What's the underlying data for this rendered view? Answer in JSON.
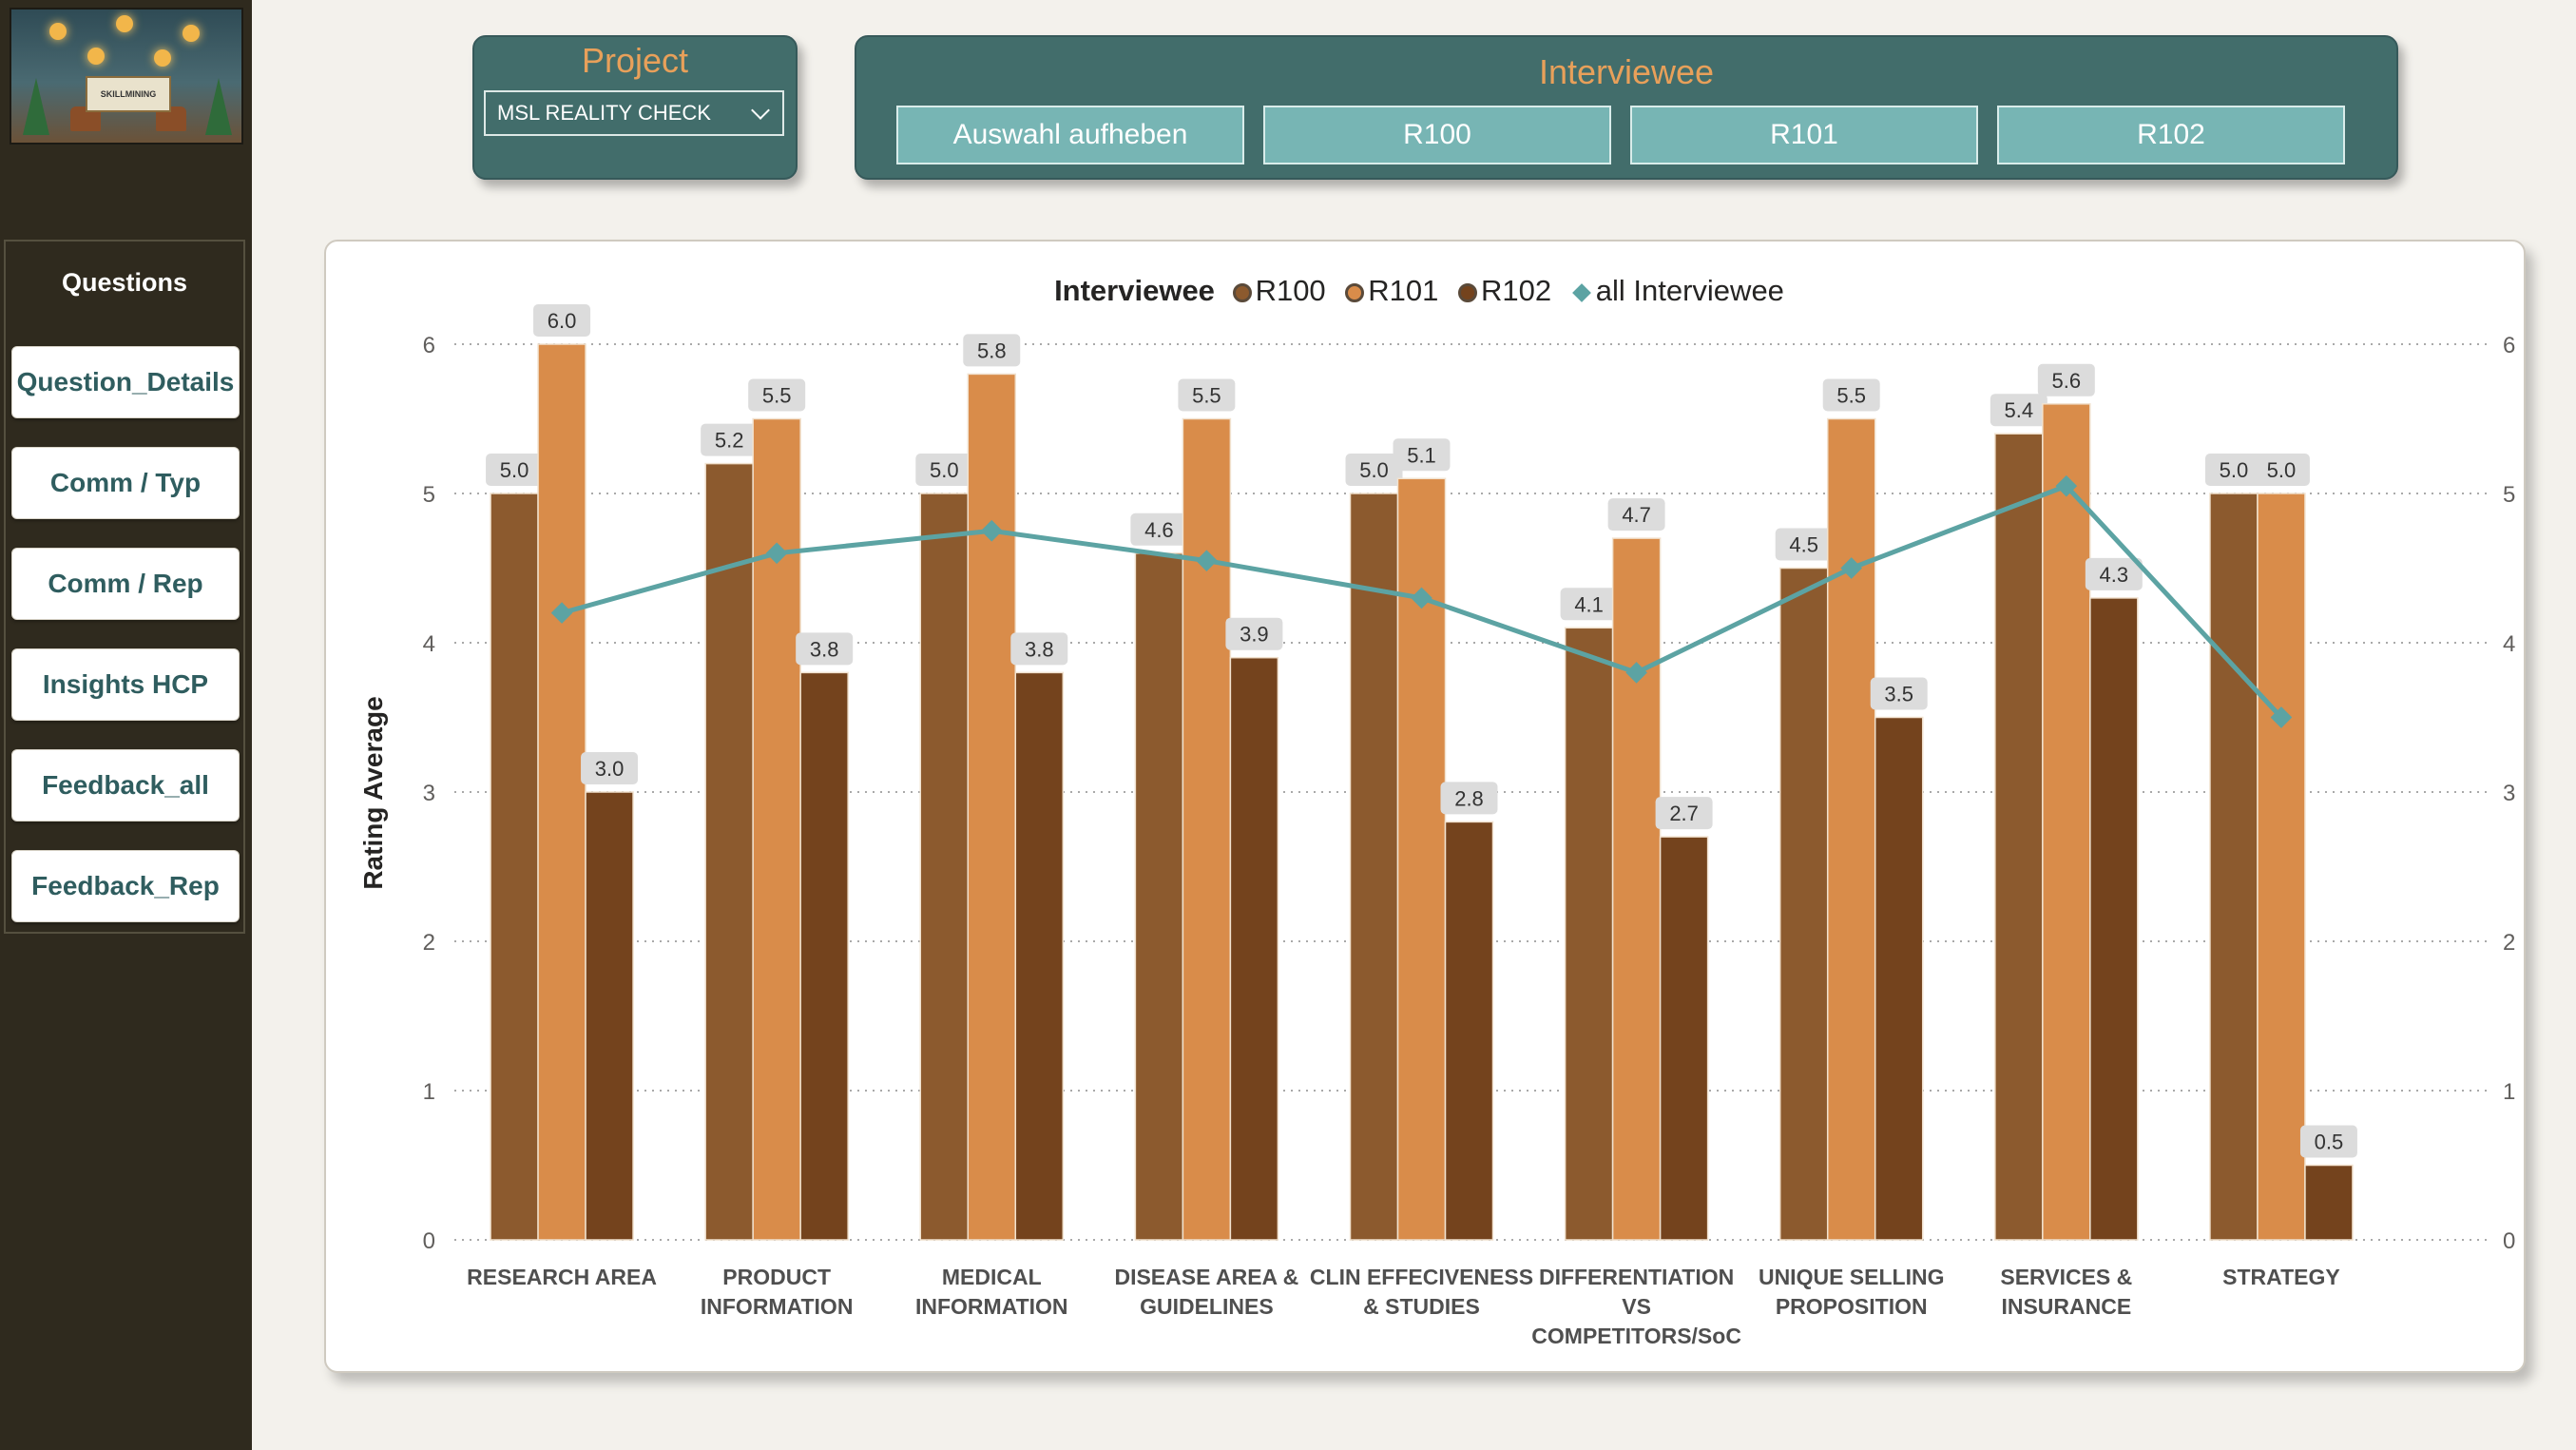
{
  "sidebar": {
    "logo_text": "SKILLMINING",
    "questions_title": "Questions",
    "buttons": [
      {
        "label": "Question_Details"
      },
      {
        "label": "Comm / Typ"
      },
      {
        "label": "Comm / Rep"
      },
      {
        "label": "Insights HCP"
      },
      {
        "label": "Feedback_all"
      },
      {
        "label": "Feedback_Rep"
      }
    ]
  },
  "project": {
    "title": "Project",
    "selected": "MSL REALITY CHECK"
  },
  "interviewee": {
    "title": "Interviewee",
    "buttons": [
      {
        "label": "Auswahl aufheben"
      },
      {
        "label": "R100"
      },
      {
        "label": "R101"
      },
      {
        "label": "R102"
      }
    ]
  },
  "colors": {
    "r100": "#8c5a2e",
    "r101": "#d98c4a",
    "r102": "#74431d",
    "all": "#5ca3a3"
  },
  "chart_data": {
    "type": "bar",
    "legend_title": "Interviewee",
    "legend_placement": "top-center",
    "ylabel": "Rating Average",
    "ylim": [
      0,
      6
    ],
    "yticks": [
      0,
      1,
      2,
      3,
      4,
      5,
      6
    ],
    "grid": true,
    "categories": [
      [
        "RESEARCH AREA"
      ],
      [
        "PRODUCT",
        "INFORMATION"
      ],
      [
        "MEDICAL",
        "INFORMATION"
      ],
      [
        "DISEASE AREA &",
        "GUIDELINES"
      ],
      [
        "CLIN EFFECIVENESS",
        "& STUDIES"
      ],
      [
        "DIFFERENTIATION",
        "VS",
        "COMPETITORS/SoC"
      ],
      [
        "UNIQUE SELLING",
        "PROPOSITION"
      ],
      [
        "SERVICES &",
        "INSURANCE"
      ],
      [
        "STRATEGY"
      ]
    ],
    "series": [
      {
        "name": "R100",
        "values": [
          5.0,
          5.2,
          5.0,
          4.6,
          5.0,
          4.1,
          4.5,
          5.4,
          5.0
        ],
        "labels": [
          "5.0",
          "5.2",
          "5.0",
          "4.6",
          "5.0",
          "4.1",
          "4.5",
          "5.4",
          "5.0"
        ]
      },
      {
        "name": "R101",
        "values": [
          6.0,
          5.5,
          5.8,
          5.5,
          5.1,
          4.7,
          5.5,
          5.6,
          5.0
        ],
        "labels": [
          "6.0",
          "5.5",
          "5.8",
          "5.5",
          "5.1",
          "4.7",
          "5.5",
          "5.6",
          "5.0"
        ]
      },
      {
        "name": "R102",
        "values": [
          3.0,
          3.8,
          3.8,
          3.9,
          2.8,
          2.7,
          3.5,
          4.3,
          0.5
        ],
        "labels": [
          "3.0",
          "3.8",
          "3.8",
          "3.9",
          "2.8",
          "2.7",
          "3.5",
          "4.3",
          "0.5"
        ]
      }
    ],
    "line_series": {
      "name": "all Interviewee",
      "values": [
        4.2,
        4.6,
        4.75,
        4.55,
        4.3,
        3.8,
        4.5,
        5.05,
        3.5
      ]
    }
  }
}
